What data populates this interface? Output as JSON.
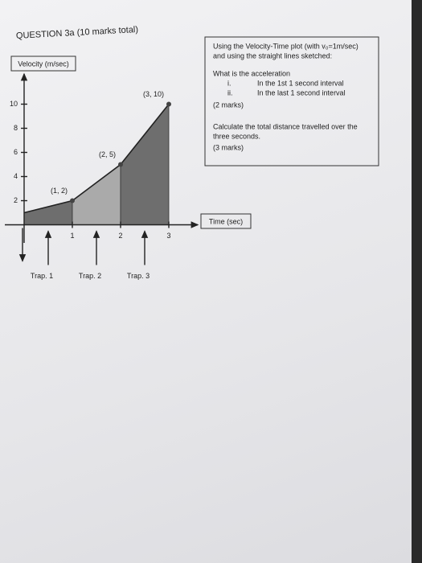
{
  "question": {
    "title": "QUESTION 3a (10 marks total)"
  },
  "instructions": {
    "intro": [
      "Using the Velocity-Time plot (with v₀=1m/sec)",
      "and using the straight lines sketched:"
    ],
    "part_a": {
      "prompt": "What is the acceleration",
      "items": [
        {
          "num": "i.",
          "text": "In the 1st 1 second interval"
        },
        {
          "num": "ii.",
          "text": "In the last 1 second interval"
        }
      ],
      "marks": "(2 marks)"
    },
    "part_b": {
      "prompt": [
        "Calculate the total distance travelled over the",
        "three seconds."
      ],
      "marks": "(3 marks)"
    }
  },
  "chart_data": {
    "type": "line",
    "xlabel": "Time (sec)",
    "ylabel": "Velocity (m/sec)",
    "x": [
      0,
      1,
      2,
      3
    ],
    "values": [
      1,
      2,
      5,
      10
    ],
    "value_labels": [
      null,
      "(1, 2)",
      "(2, 5)",
      "(3, 10)"
    ],
    "xlim": [
      -0.4,
      3.6
    ],
    "ylim": [
      -1.5,
      12.5
    ],
    "xticks": [
      1,
      2,
      3
    ],
    "yticks": [
      2,
      4,
      6,
      8,
      10
    ],
    "trapezoids": [
      "Trap. 1",
      "Trap. 2",
      "Trap. 3"
    ],
    "trapezoid_colors": [
      "#6e6e6e",
      "#aaaaaa",
      "#6e6e6e"
    ]
  }
}
